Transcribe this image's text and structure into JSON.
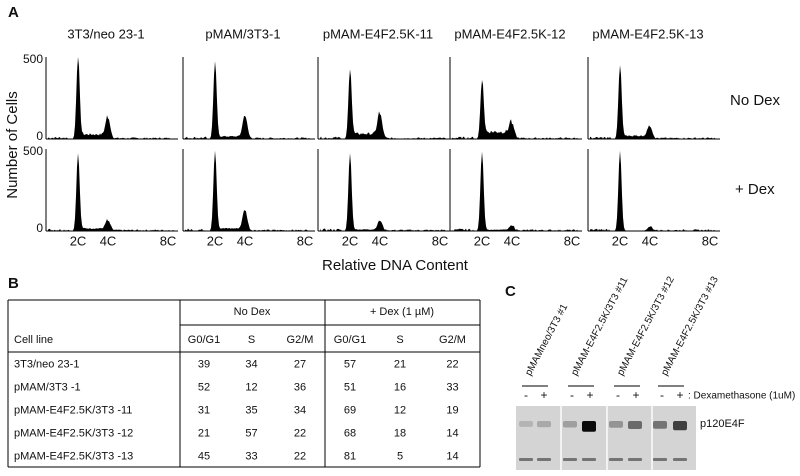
{
  "panel_a": {
    "label": "A",
    "columns": [
      "3T3/neo 23-1",
      "pMAM/3T3-1",
      "pMAM-E4F2.5K-11",
      "pMAM-E4F2.5K-12",
      "pMAM-E4F2.5K-13"
    ],
    "rows": [
      "No Dex",
      "+ Dex"
    ],
    "y_axis_label": "Number of Cells",
    "y_ticks": [
      500,
      0
    ],
    "x_ticks": [
      "2C",
      "4C",
      "8C"
    ],
    "x_axis_label": "Relative DNA Content"
  },
  "panel_b": {
    "label": "B",
    "group_headers": [
      "No Dex",
      "+ Dex (1 µM)"
    ],
    "sub_headers": [
      "Cell line",
      "G0/G1",
      "S",
      "G2/M",
      "G0/G1",
      "S",
      "G2/M"
    ],
    "rows": [
      [
        "3T3/neo 23-1",
        39,
        34,
        27,
        57,
        21,
        22
      ],
      [
        "pMAM/3T3 -1",
        52,
        12,
        36,
        51,
        16,
        33
      ],
      [
        "pMAM-E4F2.5K/3T3 -11",
        31,
        35,
        34,
        69,
        12,
        19
      ],
      [
        "pMAM-E4F2.5K/3T3 -12",
        21,
        57,
        22,
        68,
        18,
        14
      ],
      [
        "pMAM-E4F2.5K/3T3 -13",
        45,
        33,
        22,
        81,
        5,
        14
      ]
    ]
  },
  "panel_c": {
    "label": "C",
    "lanes": [
      "pMAMneo/3T3 #1",
      "pMAM-E4F2.5K/3T3 #11",
      "pMAM-E4F2.5K/3T3 #12",
      "pMAM-E4F2.5K/3T3 #13"
    ],
    "treatment_signs": [
      "-",
      "+"
    ],
    "treatment_label": ": Dexamethasone (1uM)",
    "band_label": "p120E4F"
  }
}
